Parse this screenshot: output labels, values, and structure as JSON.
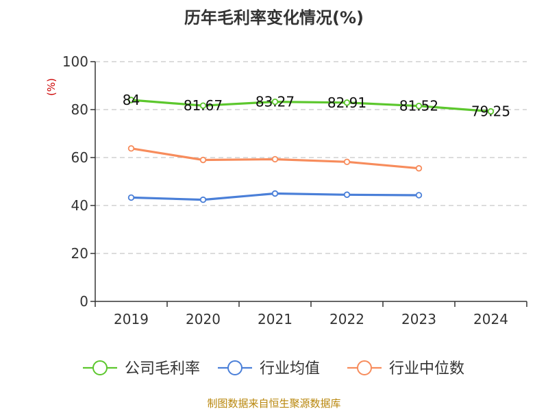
{
  "chart_data": {
    "type": "line",
    "title": "历年毛利率变化情况(%)",
    "ylabel": "(%)",
    "xlabel": "",
    "categories": [
      "2019",
      "2020",
      "2021",
      "2022",
      "2023",
      "2024"
    ],
    "ylim": [
      0,
      100
    ],
    "yticks": [
      0,
      20,
      40,
      60,
      80,
      100
    ],
    "grid": "horizontal dashed",
    "legend_position": "bottom",
    "series": [
      {
        "name": "公司毛利率",
        "color": "#5cc72d",
        "values": [
          84,
          81.67,
          83.27,
          82.91,
          81.52,
          79.25
        ],
        "labels": [
          "84",
          "81.67",
          "83.27",
          "82.91",
          "81.52",
          "79.25"
        ]
      },
      {
        "name": "行业均值",
        "color": "#4a7fd8",
        "values": [
          43.3,
          42.4,
          45.0,
          44.5,
          44.3,
          null
        ]
      },
      {
        "name": "行业中位数",
        "color": "#f78c5c",
        "values": [
          63.8,
          59.0,
          59.3,
          58.2,
          55.5,
          null
        ]
      }
    ]
  },
  "footer": {
    "source": "制图数据来自恒生聚源数据库"
  }
}
